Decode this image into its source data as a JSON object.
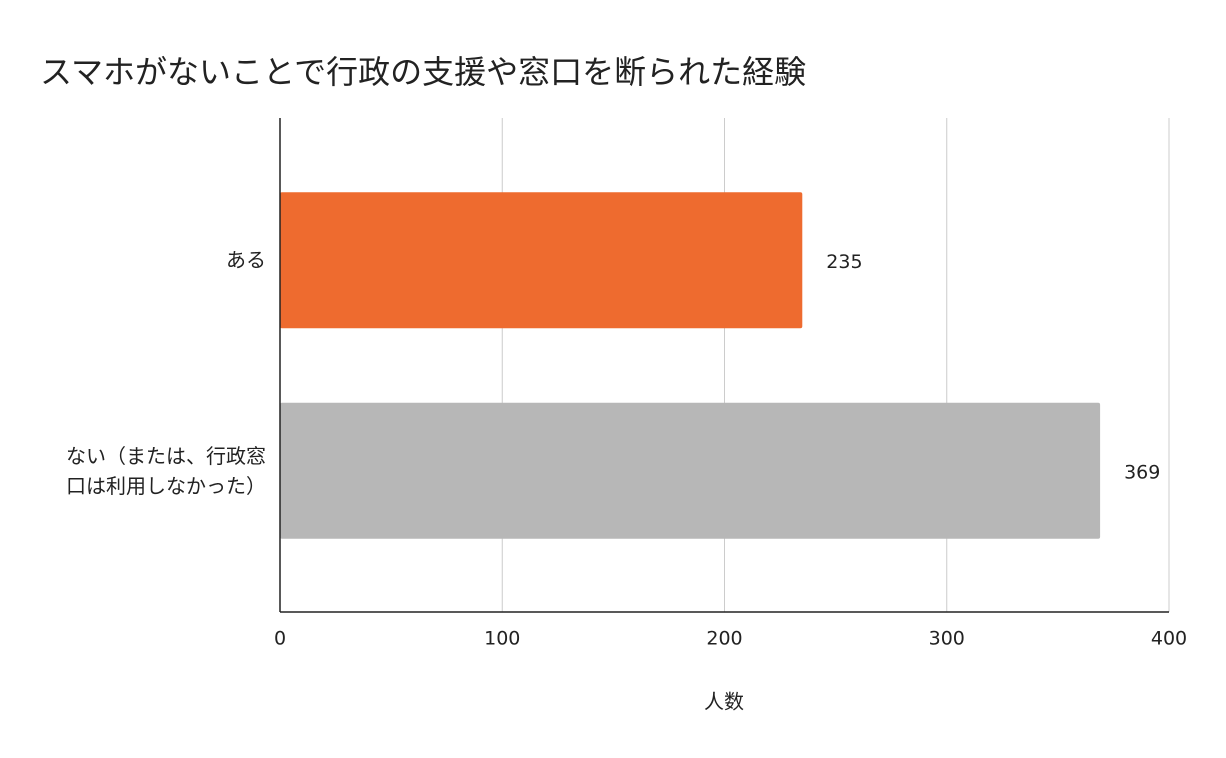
{
  "chart_data": {
    "type": "hbar",
    "title": "スマホがないことで行政の支援や窓口を断られた経験",
    "categories": [
      "ある",
      "ない（または、行政窓口は利用しなかった）"
    ],
    "values": [
      235,
      369
    ],
    "colors": [
      "#ee6b2f",
      "#b7b7b7"
    ],
    "xlabel": "人数",
    "xlim": [
      0,
      400
    ],
    "xticks": [
      0,
      100,
      200,
      300,
      400
    ],
    "grid": true
  }
}
